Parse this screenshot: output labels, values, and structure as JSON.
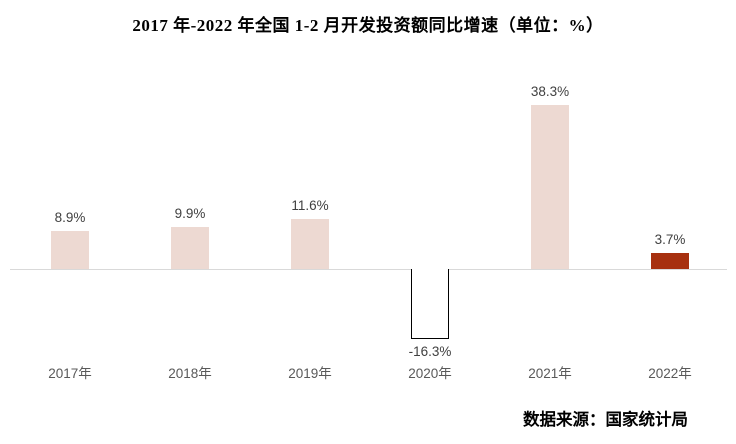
{
  "page": {
    "title": "2017 年-2022 年全国 1-2 月开发投资额同比增速（单位：%）",
    "source": "数据来源：国家统计局"
  },
  "chart_data": {
    "type": "bar",
    "title": "2017 年-2022 年全国 1-2 月开发投资额同比增速（单位：%）",
    "unit": "%",
    "categories": [
      "2017年",
      "2018年",
      "2019年",
      "2020年",
      "2021年",
      "2022年"
    ],
    "values": [
      8.9,
      9.9,
      11.6,
      -16.3,
      38.3,
      3.7
    ],
    "data_labels": [
      "8.9%",
      "9.9%",
      "11.6%",
      "-16.3%",
      "38.3%",
      "3.7%"
    ],
    "series": [
      {
        "name": "1-2月开发投资额同比增速",
        "values": [
          8.9,
          9.9,
          11.6,
          -16.3,
          38.3,
          3.7
        ]
      }
    ],
    "bar_fill_colors": [
      "#EDD9D2",
      "#EDD9D2",
      "#EDD9D2",
      "#FFFFFF",
      "#EDD9D2",
      "#A7300F"
    ],
    "bar_border_colors": [
      null,
      null,
      null,
      "#000000",
      null,
      null
    ],
    "xlabel": "",
    "ylabel": "",
    "ylim": [
      -20,
      45
    ],
    "grid": false,
    "legend_position": "none",
    "axis_line_color": "#D9D9D9",
    "data_label_color": "#404040",
    "category_label_color": "#595959",
    "source": "数据来源：国家统计局"
  }
}
